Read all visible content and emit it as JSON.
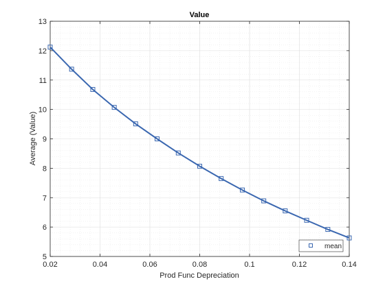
{
  "chart_data": {
    "type": "line",
    "title": "Value",
    "xlabel": "Prod Func Depreciation",
    "ylabel": "Average (Value)",
    "xlim": [
      0.02,
      0.14
    ],
    "ylim": [
      5,
      13
    ],
    "xticks": [
      0.02,
      0.04,
      0.06,
      0.08,
      0.1,
      0.12,
      0.14
    ],
    "xtick_labels": [
      "0.02",
      "0.04",
      "0.06",
      "0.08",
      "0.1",
      "0.12",
      "0.14"
    ],
    "yticks": [
      5,
      6,
      7,
      8,
      9,
      10,
      11,
      12,
      13
    ],
    "ytick_labels": [
      "5",
      "6",
      "7",
      "8",
      "9",
      "10",
      "11",
      "12",
      "13"
    ],
    "grid": true,
    "minor_grid": true,
    "legend_position": "bottom-right",
    "series": [
      {
        "name": "mean",
        "color": "#3a67b0",
        "marker": "square",
        "x": [
          0.02,
          0.0286,
          0.0371,
          0.0457,
          0.0543,
          0.0629,
          0.0714,
          0.08,
          0.0886,
          0.0971,
          0.1057,
          0.1143,
          0.1229,
          0.1314,
          0.14
        ],
        "y": [
          12.12,
          11.37,
          10.68,
          10.07,
          9.51,
          9.0,
          8.52,
          8.07,
          7.65,
          7.26,
          6.89,
          6.55,
          6.23,
          5.92,
          5.63
        ]
      }
    ]
  }
}
